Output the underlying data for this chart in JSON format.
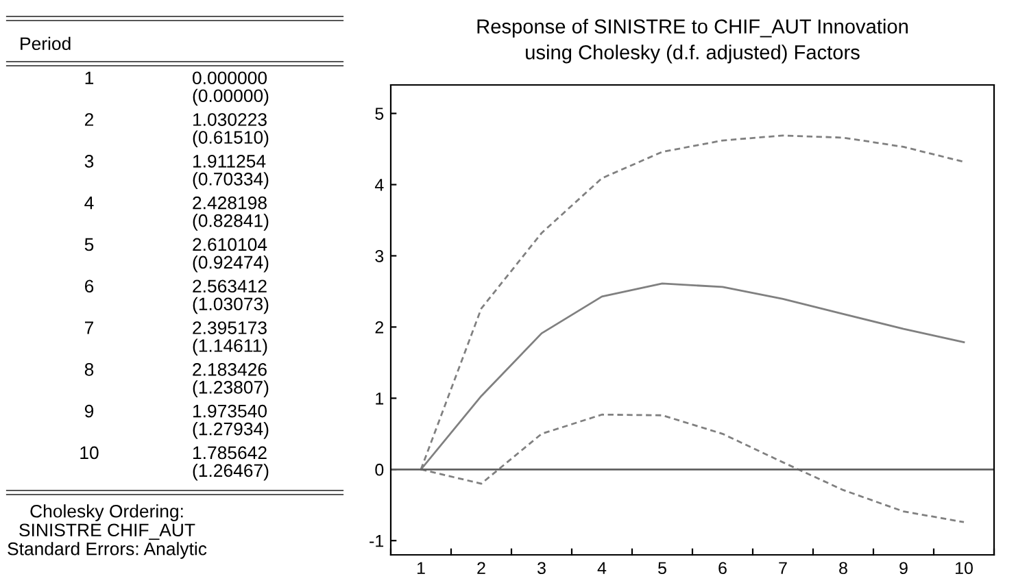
{
  "chart_data": {
    "type": "line",
    "title": "Response of SINISTRE to CHIF_AUT Innovation\nusing Cholesky (d.f. adjusted) Factors",
    "categories": [
      "1",
      "2",
      "3",
      "4",
      "5",
      "6",
      "7",
      "8",
      "9",
      "10"
    ],
    "series": [
      {
        "color": "#808080",
        "line_style": "solid",
        "values": [
          0.0,
          1.030223,
          1.911254,
          2.428198,
          2.610104,
          2.563412,
          2.395173,
          2.183426,
          1.97354,
          1.785642
        ]
      },
      {
        "color": "#808080",
        "line_style": "dashed",
        "values": [
          0.0,
          2.26,
          3.32,
          4.09,
          4.46,
          4.62,
          4.69,
          4.66,
          4.53,
          4.32
        ]
      },
      {
        "color": "#808080",
        "line_style": "dashed",
        "values": [
          0.0,
          -0.2,
          0.5,
          0.77,
          0.76,
          0.5,
          0.1,
          -0.29,
          -0.59,
          -0.74
        ]
      }
    ],
    "ylim": [
      -1.2,
      5.4
    ],
    "yticks": [
      -1,
      0,
      1,
      2,
      3,
      4,
      5
    ],
    "ref_lines": [
      {
        "axis": "y",
        "value": 0,
        "color": "#606060",
        "line_style": "solid"
      }
    ],
    "grid": false,
    "legend": false,
    "annotations": [
      "Period",
      "0.000000",
      "(0.00000)",
      "1.030223",
      "(0.61510)",
      "1.911254",
      "(0.70334)",
      "2.428198",
      "(0.82841)",
      "2.610104",
      "(0.92474)",
      "2.563412",
      "(1.03073)",
      "2.395173",
      "(1.14611)",
      "2.183426",
      "(1.23807)",
      "1.973540",
      "(1.27934)",
      "1.785642",
      "(1.26467)",
      "Cholesky Ordering:\nSINISTRE CHIF_AUT\nStandard Errors: Analytic"
    ]
  }
}
